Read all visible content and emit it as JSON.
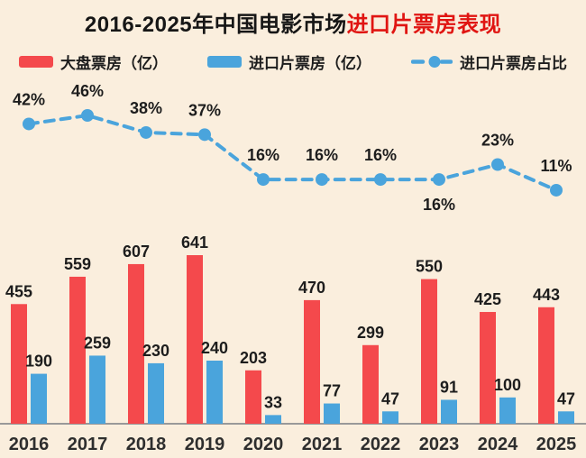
{
  "title": {
    "part1": "2016-2025年中国电影市场",
    "part2": "进口片票房表现"
  },
  "legend": {
    "items": [
      {
        "label": "大盘票房（亿）",
        "swatch": "red-bar-swatch",
        "color": "#f4494c"
      },
      {
        "label": "进口片票房（亿）",
        "swatch": "blue-bar-swatch",
        "color": "#4aa4dc"
      },
      {
        "label": "进口片票房占比",
        "swatch": "dashed-line-dot-icon",
        "color": "#4aa4dc"
      }
    ]
  },
  "colors": {
    "background": "#faeedd",
    "bar_red": "#f4494c",
    "bar_blue": "#4aa4dc",
    "line_blue": "#4aa4dc",
    "title_black": "#161616",
    "title_red": "#e01512",
    "label_dark": "#1d1d1d",
    "axis_line": "#999999"
  },
  "chart_data": {
    "type": "bar",
    "subtype": "grouped-bars-with-percentage-line",
    "title": "2016-2025年中国电影市场进口片票房表现",
    "categories": [
      "2016",
      "2017",
      "2018",
      "2019",
      "2020",
      "2021",
      "2022",
      "2023",
      "2024",
      "2025"
    ],
    "series": [
      {
        "name": "大盘票房（亿）",
        "type": "bar",
        "color": "#f4494c",
        "values": [
          455,
          559,
          607,
          641,
          203,
          470,
          299,
          550,
          425,
          443
        ]
      },
      {
        "name": "进口片票房（亿）",
        "type": "bar",
        "color": "#4aa4dc",
        "values": [
          190,
          259,
          230,
          240,
          33,
          77,
          47,
          91,
          100,
          47
        ]
      },
      {
        "name": "进口片票房占比",
        "type": "line",
        "style": "dashed-with-dots",
        "color": "#4aa4dc",
        "unit": "%",
        "values": [
          42,
          46,
          38,
          37,
          16,
          16,
          16,
          16,
          23,
          11
        ]
      }
    ],
    "value_labels": true,
    "grid": false,
    "legend_position": "top",
    "xlabel": "",
    "ylabel": "",
    "y_axis_visible": false,
    "baseline_visible": true
  }
}
